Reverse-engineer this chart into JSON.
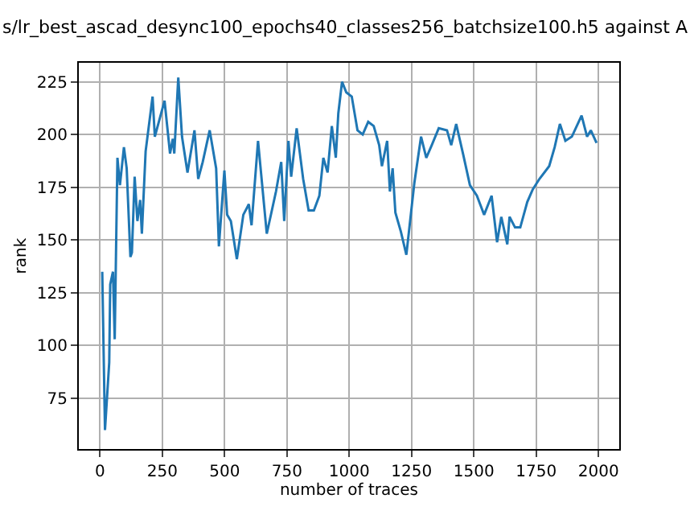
{
  "chart_data": {
    "type": "line",
    "title": "s/lr_best_ascad_desync100_epochs40_classes256_batchsize100.h5 against A",
    "xlabel": "number of traces",
    "ylabel": "rank",
    "series": [
      {
        "color": "#1f77b4",
        "x": [
          9,
          20,
          37,
          41,
          52,
          59,
          70,
          80,
          96,
          107,
          122,
          128,
          139,
          150,
          161,
          168,
          183,
          211,
          220,
          259,
          281,
          292,
          298,
          314,
          329,
          351,
          379,
          394,
          412,
          440,
          466,
          477,
          499,
          510,
          525,
          549,
          575,
          597,
          608,
          634,
          669,
          706,
          727,
          739,
          756,
          767,
          789,
          815,
          837,
          858,
          880,
          896,
          913,
          930,
          946,
          956,
          971,
          988,
          1010,
          1033,
          1054,
          1076,
          1098,
          1120,
          1131,
          1152,
          1163,
          1174,
          1185,
          1207,
          1229,
          1261,
          1288,
          1309,
          1331,
          1359,
          1392,
          1409,
          1429,
          1458,
          1484,
          1512,
          1541,
          1571,
          1593,
          1610,
          1634,
          1643,
          1665,
          1686,
          1714,
          1736,
          1763,
          1802,
          1824,
          1845,
          1867,
          1893,
          1932,
          1954,
          1969,
          1992
        ],
        "values": [
          135,
          60,
          92,
          129,
          135,
          103,
          189,
          176,
          194,
          184,
          142,
          144,
          180,
          159,
          169,
          153,
          192,
          218,
          199,
          216,
          191,
          198,
          191,
          227,
          199,
          182,
          202,
          179,
          187,
          202,
          184,
          147,
          183,
          162,
          159,
          141,
          162,
          167,
          157,
          197,
          153,
          173,
          187,
          159,
          197,
          180,
          203,
          179,
          164,
          164,
          171,
          189,
          182,
          204,
          189,
          210,
          225,
          220,
          218,
          202,
          200,
          206,
          204,
          195,
          185,
          197,
          173,
          184,
          163,
          154,
          143,
          177,
          199,
          189,
          195,
          203,
          202,
          195,
          205,
          190,
          176,
          171,
          162,
          171,
          149,
          161,
          148,
          161,
          156,
          156,
          168,
          174,
          179,
          185,
          194,
          205,
          197,
          199,
          209,
          199,
          202,
          196
        ]
      }
    ],
    "xlim": [
      -85,
      2083
    ],
    "ylim": [
      51,
      234
    ],
    "xticks": [
      0,
      250,
      500,
      750,
      1000,
      1250,
      1500,
      1750,
      2000
    ],
    "yticks": [
      75,
      100,
      125,
      150,
      175,
      200,
      225
    ],
    "grid": true,
    "legend": false,
    "marker": "none",
    "line_style": "solid"
  }
}
